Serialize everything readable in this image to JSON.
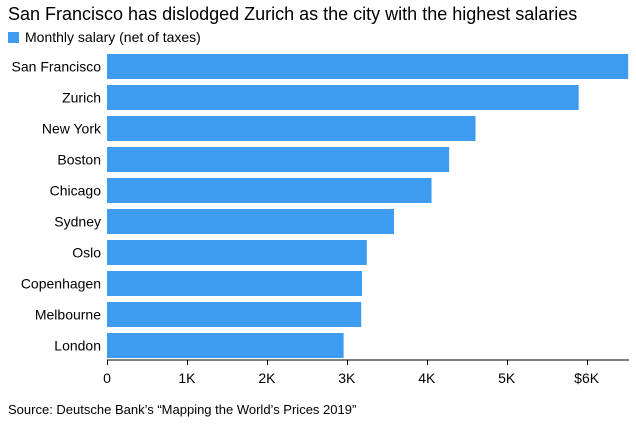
{
  "chart_data": {
    "type": "bar",
    "orientation": "horizontal",
    "title": "San Francisco has dislodged Zurich as the city with the highest salaries",
    "legend": [
      "Monthly salary (net of taxes)"
    ],
    "legend_position": "top-left",
    "categories": [
      "San Francisco",
      "Zurich",
      "New York",
      "Boston",
      "Chicago",
      "Sydney",
      "Oslo",
      "Copenhagen",
      "Melbourne",
      "London"
    ],
    "series": [
      {
        "name": "Monthly salary (net of taxes)",
        "values": [
          6520,
          5900,
          4610,
          4280,
          4060,
          3590,
          3250,
          3190,
          3180,
          2960
        ]
      }
    ],
    "x_ticks": [
      {
        "value": 0,
        "label": "0"
      },
      {
        "value": 1000,
        "label": "1K"
      },
      {
        "value": 2000,
        "label": "2K"
      },
      {
        "value": 3000,
        "label": "3K"
      },
      {
        "value": 4000,
        "label": "4K"
      },
      {
        "value": 5000,
        "label": "5K"
      },
      {
        "value": 6000,
        "label": "$6K"
      }
    ],
    "xlim": [
      0,
      6530
    ],
    "grid": false,
    "color": "#3D9BF0",
    "source": "Source: Deutsche Bank’s “Mapping the World’s Prices 2019”"
  }
}
